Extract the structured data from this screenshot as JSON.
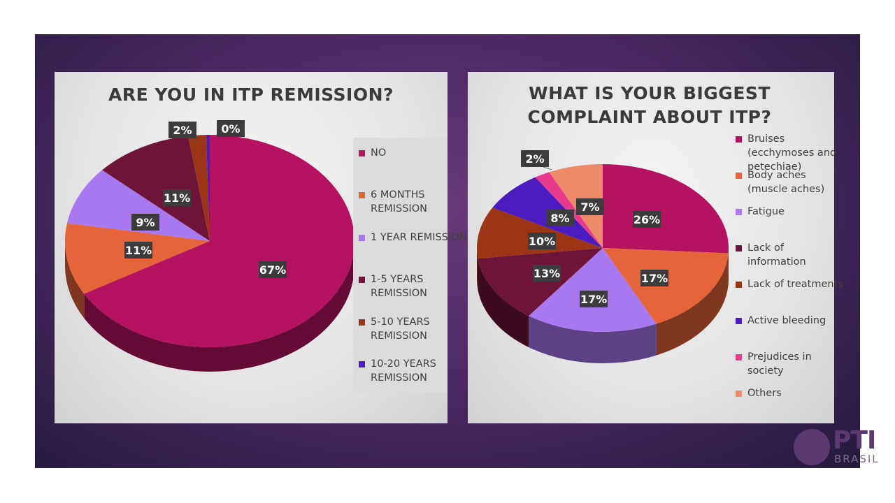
{
  "chart_data": [
    {
      "type": "pie",
      "title": "ARE YOU IN ITP REMISSION?",
      "categories": [
        "NO",
        "6 MONTHS REMISSION",
        "1 YEAR REMISSION",
        "1-5 YEARS REMISSION",
        "5-10 YEARS REMISSION",
        "10-20 YEARS REMISSION"
      ],
      "values": [
        67,
        11,
        9,
        11,
        2,
        0.4
      ],
      "labels": [
        "67%",
        "11%",
        "9%",
        "11%",
        "2%",
        "0%"
      ],
      "colors": [
        "#b5135f",
        "#e6643a",
        "#a878f0",
        "#6e1438",
        "#9c3515",
        "#4b1cc0"
      ],
      "legend_position": "right"
    },
    {
      "type": "pie",
      "title": "WHAT IS YOUR BIGGEST COMPLAINT ABOUT ITP?",
      "categories": [
        "Bruises (ecchymoses and petechiae)",
        "Body aches (muscle aches)",
        "Fatigue",
        "Lack of information",
        "Lack of treatments",
        "Active bleeding",
        "Prejudices in society",
        "Others"
      ],
      "values": [
        26,
        17,
        17,
        13,
        10,
        8,
        2,
        7
      ],
      "labels": [
        "26%",
        "17%",
        "17%",
        "13%",
        "10%",
        "8%",
        "2%",
        "7%"
      ],
      "colors": [
        "#b5135f",
        "#e6643a",
        "#a878f0",
        "#6e1438",
        "#9c3515",
        "#4b1cc0",
        "#e83a8c",
        "#ec8a6a"
      ],
      "legend_position": "right"
    }
  ],
  "logo": {
    "main": "PTI",
    "sub": "BRASIL"
  }
}
